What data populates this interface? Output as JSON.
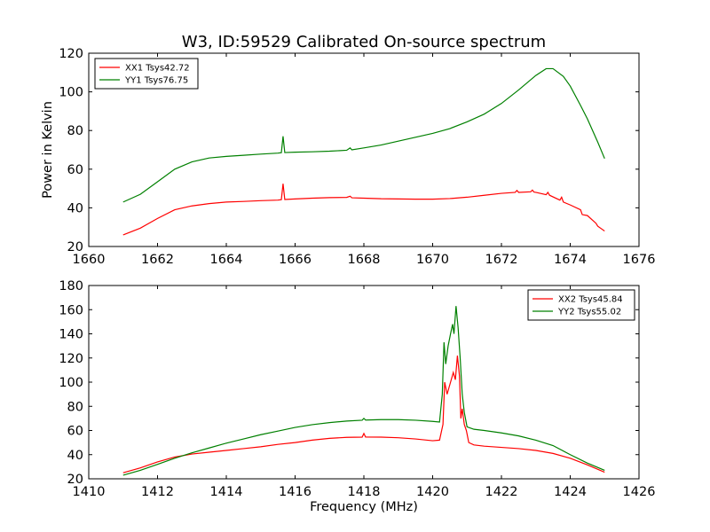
{
  "figure_title": "W3, ID:59529 Calibrated On-source spectrum",
  "chart_data": [
    {
      "type": "line",
      "title": "W3, ID:59529 Calibrated On-source spectrum",
      "xlabel": "",
      "ylabel": "Power in Kelvin",
      "xlim": [
        1660,
        1676
      ],
      "ylim": [
        20,
        120
      ],
      "xticks": [
        1660,
        1662,
        1664,
        1666,
        1668,
        1670,
        1672,
        1674,
        1676
      ],
      "yticks": [
        20,
        40,
        60,
        80,
        100,
        120
      ],
      "legend_position": "top-left",
      "grid": false,
      "series": [
        {
          "name": "XX1 Tsys42.72",
          "color": "#ff0000",
          "points": [
            [
              1661.0,
              26.0
            ],
            [
              1661.5,
              29.5
            ],
            [
              1662.0,
              34.5
            ],
            [
              1662.5,
              39.0
            ],
            [
              1663.0,
              41.0
            ],
            [
              1663.5,
              42.2
            ],
            [
              1664.0,
              43.0
            ],
            [
              1664.5,
              43.3
            ],
            [
              1665.0,
              43.7
            ],
            [
              1665.5,
              44.0
            ],
            [
              1665.6,
              44.2
            ],
            [
              1665.65,
              52.5
            ],
            [
              1665.7,
              44.3
            ],
            [
              1666.0,
              44.6
            ],
            [
              1666.5,
              45.0
            ],
            [
              1667.0,
              45.3
            ],
            [
              1667.5,
              45.4
            ],
            [
              1667.6,
              46.0
            ],
            [
              1667.65,
              45.2
            ],
            [
              1668.0,
              45.0
            ],
            [
              1668.5,
              44.7
            ],
            [
              1669.0,
              44.6
            ],
            [
              1669.5,
              44.5
            ],
            [
              1670.0,
              44.5
            ],
            [
              1670.5,
              44.8
            ],
            [
              1671.0,
              45.5
            ],
            [
              1671.5,
              46.5
            ],
            [
              1672.0,
              47.5
            ],
            [
              1672.4,
              48.0
            ],
            [
              1672.45,
              49.0
            ],
            [
              1672.5,
              48.0
            ],
            [
              1672.85,
              48.3
            ],
            [
              1672.9,
              49.2
            ],
            [
              1672.95,
              48.1
            ],
            [
              1673.0,
              48.0
            ],
            [
              1673.3,
              46.8
            ],
            [
              1673.35,
              48.0
            ],
            [
              1673.4,
              46.5
            ],
            [
              1673.7,
              44.0
            ],
            [
              1673.75,
              45.5
            ],
            [
              1673.8,
              43.0
            ],
            [
              1674.0,
              41.5
            ],
            [
              1674.3,
              39.0
            ],
            [
              1674.35,
              36.5
            ],
            [
              1674.5,
              36.0
            ],
            [
              1674.75,
              32.0
            ],
            [
              1674.8,
              30.5
            ],
            [
              1675.0,
              28.0
            ]
          ]
        },
        {
          "name": "YY1 Tsys76.75",
          "color": "#008000",
          "points": [
            [
              1661.0,
              43.0
            ],
            [
              1661.5,
              47.0
            ],
            [
              1662.0,
              53.5
            ],
            [
              1662.5,
              60.0
            ],
            [
              1663.0,
              63.8
            ],
            [
              1663.5,
              65.8
            ],
            [
              1664.0,
              66.6
            ],
            [
              1664.5,
              67.2
            ],
            [
              1665.0,
              67.8
            ],
            [
              1665.5,
              68.3
            ],
            [
              1665.6,
              68.5
            ],
            [
              1665.65,
              77.0
            ],
            [
              1665.7,
              68.6
            ],
            [
              1666.0,
              68.8
            ],
            [
              1666.5,
              69.0
            ],
            [
              1667.0,
              69.3
            ],
            [
              1667.5,
              69.8
            ],
            [
              1667.6,
              71.0
            ],
            [
              1667.65,
              70.0
            ],
            [
              1668.0,
              71.0
            ],
            [
              1668.5,
              72.5
            ],
            [
              1669.0,
              74.5
            ],
            [
              1669.5,
              76.5
            ],
            [
              1670.0,
              78.5
            ],
            [
              1670.5,
              81.0
            ],
            [
              1671.0,
              84.5
            ],
            [
              1671.5,
              88.5
            ],
            [
              1672.0,
              94.0
            ],
            [
              1672.5,
              101.0
            ],
            [
              1673.0,
              108.5
            ],
            [
              1673.3,
              112.0
            ],
            [
              1673.5,
              112.0
            ],
            [
              1673.8,
              108.0
            ],
            [
              1674.0,
              103.0
            ],
            [
              1674.3,
              93.0
            ],
            [
              1674.5,
              86.0
            ],
            [
              1674.8,
              74.0
            ],
            [
              1675.0,
              65.5
            ]
          ]
        }
      ]
    },
    {
      "type": "line",
      "title": "",
      "xlabel": "Frequency (MHz)",
      "ylabel": "",
      "xlim": [
        1410,
        1426
      ],
      "ylim": [
        20,
        180
      ],
      "xticks": [
        1410,
        1412,
        1414,
        1416,
        1418,
        1420,
        1422,
        1424,
        1426
      ],
      "yticks": [
        20,
        40,
        60,
        80,
        100,
        120,
        140,
        160,
        180
      ],
      "legend_position": "top-right",
      "grid": false,
      "series": [
        {
          "name": "XX2 Tsys45.84",
          "color": "#ff0000",
          "points": [
            [
              1411.0,
              25.0
            ],
            [
              1411.5,
              29.0
            ],
            [
              1412.0,
              34.0
            ],
            [
              1412.5,
              38.0
            ],
            [
              1413.0,
              40.5
            ],
            [
              1413.5,
              42.0
            ],
            [
              1414.0,
              43.5
            ],
            [
              1414.5,
              45.0
            ],
            [
              1415.0,
              46.5
            ],
            [
              1415.5,
              48.5
            ],
            [
              1416.0,
              50.0
            ],
            [
              1416.5,
              52.0
            ],
            [
              1417.0,
              53.5
            ],
            [
              1417.5,
              54.3
            ],
            [
              1417.95,
              54.5
            ],
            [
              1418.0,
              57.5
            ],
            [
              1418.05,
              54.6
            ],
            [
              1418.5,
              54.5
            ],
            [
              1419.0,
              54.0
            ],
            [
              1419.5,
              53.0
            ],
            [
              1420.0,
              51.5
            ],
            [
              1420.2,
              52.0
            ],
            [
              1420.3,
              65.0
            ],
            [
              1420.35,
              100.0
            ],
            [
              1420.42,
              90.0
            ],
            [
              1420.5,
              98.0
            ],
            [
              1420.6,
              108.0
            ],
            [
              1420.66,
              102.0
            ],
            [
              1420.72,
              122.0
            ],
            [
              1420.78,
              105.0
            ],
            [
              1420.82,
              70.0
            ],
            [
              1420.86,
              78.0
            ],
            [
              1420.92,
              65.0
            ],
            [
              1420.98,
              60.0
            ],
            [
              1421.05,
              50.0
            ],
            [
              1421.2,
              48.0
            ],
            [
              1421.5,
              47.0
            ],
            [
              1422.0,
              46.0
            ],
            [
              1422.5,
              45.0
            ],
            [
              1423.0,
              43.5
            ],
            [
              1423.5,
              41.0
            ],
            [
              1424.0,
              37.0
            ],
            [
              1424.5,
              31.5
            ],
            [
              1425.0,
              25.5
            ]
          ]
        },
        {
          "name": "YY2 Tsys55.02",
          "color": "#008000",
          "points": [
            [
              1411.0,
              23.0
            ],
            [
              1411.5,
              27.0
            ],
            [
              1412.0,
              32.0
            ],
            [
              1412.5,
              37.0
            ],
            [
              1413.0,
              41.5
            ],
            [
              1413.5,
              45.5
            ],
            [
              1414.0,
              49.5
            ],
            [
              1414.5,
              53.0
            ],
            [
              1415.0,
              56.5
            ],
            [
              1415.5,
              59.5
            ],
            [
              1416.0,
              62.5
            ],
            [
              1416.5,
              64.8
            ],
            [
              1417.0,
              66.5
            ],
            [
              1417.5,
              67.8
            ],
            [
              1417.95,
              68.5
            ],
            [
              1418.0,
              70.0
            ],
            [
              1418.05,
              68.6
            ],
            [
              1418.5,
              69.0
            ],
            [
              1419.0,
              69.0
            ],
            [
              1419.5,
              68.5
            ],
            [
              1420.0,
              67.5
            ],
            [
              1420.2,
              67.0
            ],
            [
              1420.28,
              90.0
            ],
            [
              1420.33,
              133.0
            ],
            [
              1420.38,
              115.0
            ],
            [
              1420.45,
              130.0
            ],
            [
              1420.52,
              140.0
            ],
            [
              1420.58,
              148.0
            ],
            [
              1420.62,
              140.0
            ],
            [
              1420.68,
              163.0
            ],
            [
              1420.74,
              145.0
            ],
            [
              1420.8,
              120.0
            ],
            [
              1420.86,
              90.0
            ],
            [
              1420.92,
              75.0
            ],
            [
              1421.0,
              63.0
            ],
            [
              1421.2,
              61.0
            ],
            [
              1421.5,
              60.0
            ],
            [
              1422.0,
              58.0
            ],
            [
              1422.5,
              55.5
            ],
            [
              1423.0,
              52.0
            ],
            [
              1423.5,
              47.5
            ],
            [
              1424.0,
              40.0
            ],
            [
              1424.5,
              33.0
            ],
            [
              1425.0,
              27.0
            ]
          ]
        }
      ]
    }
  ]
}
